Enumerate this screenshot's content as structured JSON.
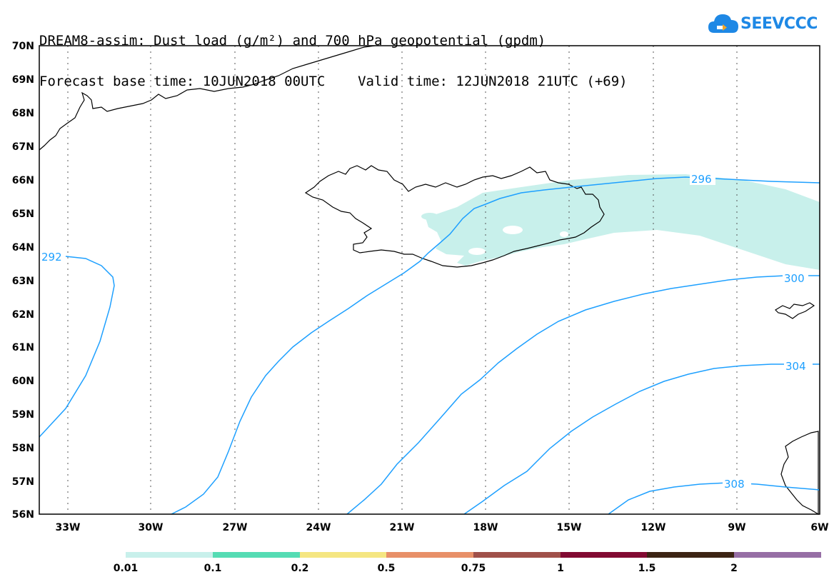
{
  "header": {
    "line1": "DREAM8-assim: Dust load (g/m²) and 700 hPa geopotential (gpdm)",
    "line2": "Forecast base time: 10JUN2018 00UTC    Valid time: 12JUN2018 21UTC (+69)"
  },
  "logo": {
    "text": "SEEVCCC",
    "icon": "cloud-logo-icon"
  },
  "map": {
    "lat_labels": [
      "70N",
      "69N",
      "68N",
      "67N",
      "66N",
      "65N",
      "64N",
      "63N",
      "62N",
      "61N",
      "60N",
      "59N",
      "58N",
      "57N",
      "56N"
    ],
    "lon_labels": [
      "33W",
      "30W",
      "27W",
      "24W",
      "21W",
      "18W",
      "15W",
      "12W",
      "9W",
      "6W"
    ],
    "contour_labels": [
      "292",
      "296",
      "300",
      "304",
      "308"
    ],
    "contour_color": "#1ea0ff",
    "dust_fill_color": "#c8f0eb",
    "coast_color": "#000000"
  },
  "colorbar": {
    "labels": [
      "0.01",
      "0.1",
      "0.2",
      "0.5",
      "0.75",
      "1",
      "1.5",
      "2"
    ],
    "colors": [
      "#c8f0eb",
      "#55dcb4",
      "#f5e682",
      "#e89068",
      "#a0504a",
      "#820a32",
      "#3c2414",
      "#966ea5"
    ]
  }
}
